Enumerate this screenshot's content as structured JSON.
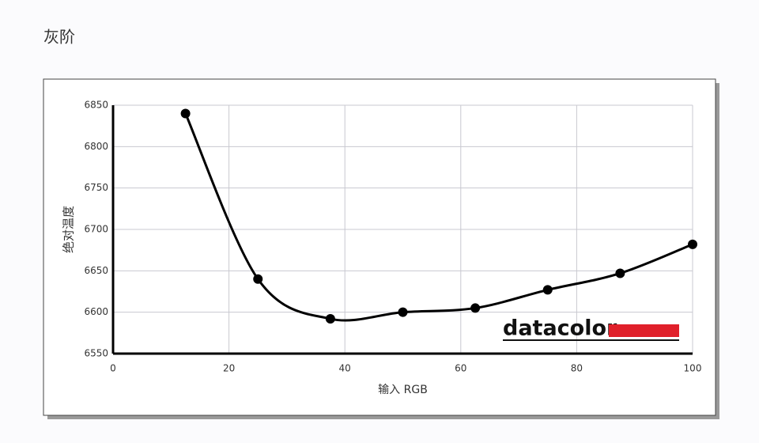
{
  "page_title": "灰阶",
  "chart_data": {
    "type": "line",
    "x_label": "输入 RGB",
    "y_label": "绝对温度",
    "logo": "datacolor",
    "x": [
      12.5,
      25,
      37.5,
      50,
      62.5,
      75,
      87.5,
      100
    ],
    "series": [
      {
        "color": "#000000",
        "values": [
          6840,
          6640,
          6592,
          6600,
          6605,
          6627,
          6647,
          6682
        ]
      }
    ],
    "xlim": [
      0,
      100
    ],
    "xticks": [
      0,
      20,
      40,
      60,
      80,
      100
    ],
    "ylim": [
      6550,
      6850
    ],
    "yticks": [
      6550,
      6600,
      6650,
      6700,
      6750,
      6800,
      6850
    ],
    "grid": true
  }
}
